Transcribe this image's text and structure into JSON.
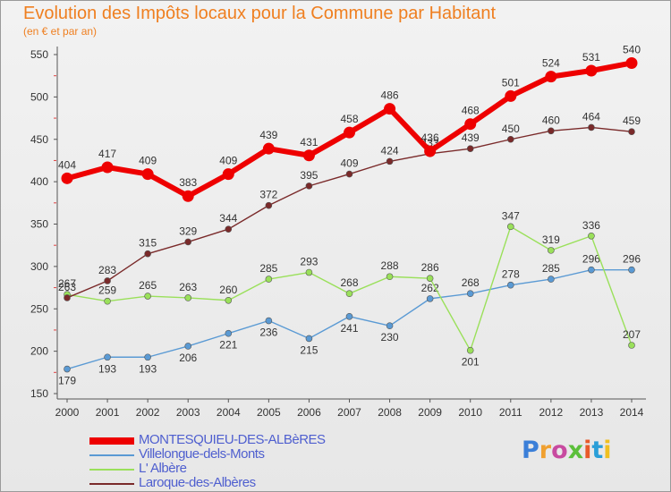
{
  "title": "Evolution des Impôts locaux pour la Commune par Habitant",
  "subtitle": "(en € et par an)",
  "logo_text": "Proxiti",
  "colors": {
    "title": "#ef7f20",
    "background": "#ececec",
    "legend_text": "#4f5fcf",
    "logo": [
      "#3b7fd8",
      "#f0a030",
      "#c84aa0",
      "#5bbf3a",
      "#e85a2a",
      "#2a9fd8",
      "#f0c020"
    ]
  },
  "chart_data": {
    "type": "line",
    "title": "Evolution des Impôts locaux pour la Commune par Habitant",
    "subtitle": "(en € et par an)",
    "xlabel": "",
    "ylabel": "",
    "x": [
      2000,
      2001,
      2002,
      2003,
      2004,
      2005,
      2006,
      2007,
      2008,
      2009,
      2010,
      2011,
      2012,
      2013,
      2014
    ],
    "ylim": [
      150,
      550
    ],
    "yticks": [
      150,
      200,
      250,
      300,
      350,
      400,
      450,
      500,
      550
    ],
    "grid": false,
    "legend_position": "bottom-left",
    "series": [
      {
        "name": "MONTESQUIEU-DES-ALBèRES",
        "color": "#ee0000",
        "values": [
          404,
          417,
          409,
          383,
          409,
          439,
          431,
          458,
          486,
          436,
          468,
          501,
          524,
          531,
          540
        ]
      },
      {
        "name": "Villelongue-dels-Monts",
        "color": "#5a9ad4",
        "values": [
          179,
          193,
          193,
          206,
          221,
          236,
          215,
          241,
          230,
          262,
          268,
          278,
          285,
          296,
          296
        ]
      },
      {
        "name": "L' Albère",
        "color": "#9ae05a",
        "values": [
          267,
          259,
          265,
          263,
          260,
          285,
          293,
          268,
          288,
          286,
          201,
          347,
          319,
          336,
          207
        ]
      },
      {
        "name": "Laroque-des-Albères",
        "color": "#7a2a2a",
        "values": [
          263,
          283,
          315,
          329,
          344,
          372,
          395,
          409,
          424,
          433,
          439,
          450,
          460,
          464,
          459
        ]
      }
    ]
  }
}
